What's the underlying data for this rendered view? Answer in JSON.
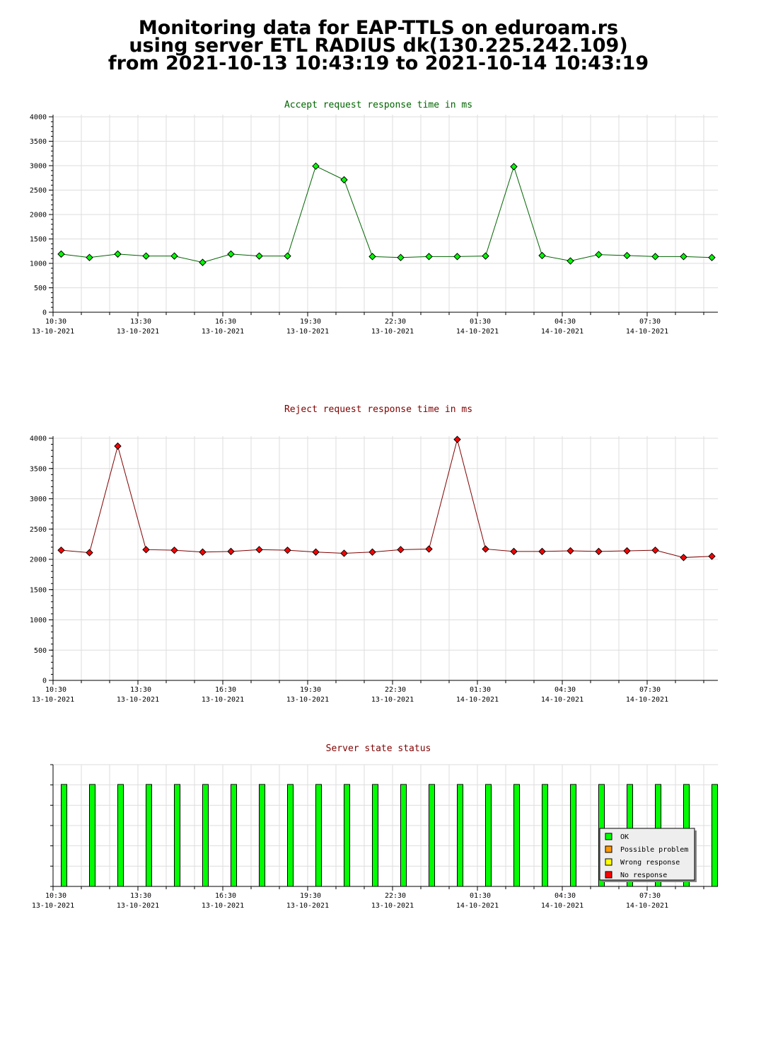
{
  "header": {
    "line1": "Monitoring data for EAP-TTLS on eduroam.rs",
    "line2": "using server ETL RADIUS dk(130.225.242.109)",
    "line3": "from 2021-10-13 10:43:19 to 2021-10-14 10:43:19"
  },
  "x_axis": {
    "ticks": [
      {
        "time": "10:30",
        "date": "13-10-2021"
      },
      {
        "time": "13:30",
        "date": "13-10-2021"
      },
      {
        "time": "16:30",
        "date": "13-10-2021"
      },
      {
        "time": "19:30",
        "date": "13-10-2021"
      },
      {
        "time": "22:30",
        "date": "13-10-2021"
      },
      {
        "time": "01:30",
        "date": "14-10-2021"
      },
      {
        "time": "04:30",
        "date": "14-10-2021"
      },
      {
        "time": "07:30",
        "date": "14-10-2021"
      }
    ]
  },
  "chart_data": [
    {
      "type": "line",
      "title": "Accept request response time in ms",
      "title_color": "#006400",
      "series_color": "#00ff00",
      "line_color": "#006400",
      "ylim": [
        0,
        4000
      ],
      "yticks": [
        0,
        500,
        1000,
        1500,
        2000,
        2500,
        3000,
        3500,
        4000
      ],
      "x": [
        "10:43",
        "11:43",
        "12:43",
        "13:43",
        "14:43",
        "15:43",
        "16:43",
        "17:43",
        "18:43",
        "19:43",
        "20:43",
        "21:43",
        "22:43",
        "23:43",
        "00:43",
        "01:43",
        "02:43",
        "03:43",
        "04:43",
        "05:43",
        "06:43",
        "07:43",
        "08:43",
        "09:43"
      ],
      "values": [
        1190,
        1120,
        1190,
        1150,
        1150,
        1020,
        1190,
        1150,
        1150,
        2990,
        2710,
        1140,
        1120,
        1140,
        1140,
        1150,
        2980,
        1160,
        1050,
        1180,
        1160,
        1140,
        1140,
        1120
      ],
      "grid": true
    },
    {
      "type": "line",
      "title": "Reject request response time in ms",
      "title_color": "#800000",
      "series_color": "#ff0000",
      "line_color": "#800000",
      "ylim": [
        0,
        4000
      ],
      "yticks": [
        0,
        500,
        1000,
        1500,
        2000,
        2500,
        3000,
        3500,
        4000
      ],
      "x": [
        "10:43",
        "11:43",
        "12:43",
        "13:43",
        "14:43",
        "15:43",
        "16:43",
        "17:43",
        "18:43",
        "19:43",
        "20:43",
        "21:43",
        "22:43",
        "23:43",
        "00:43",
        "01:43",
        "02:43",
        "03:43",
        "04:43",
        "05:43",
        "06:43",
        "07:43",
        "08:43",
        "09:43"
      ],
      "values": [
        2150,
        2110,
        3870,
        2160,
        2150,
        2120,
        2130,
        2160,
        2150,
        2120,
        2100,
        2120,
        2160,
        2170,
        3980,
        2170,
        2130,
        2130,
        2140,
        2130,
        2140,
        2150,
        2030,
        2050
      ],
      "grid": true
    },
    {
      "type": "bar",
      "title": "Server state status",
      "title_color": "#800000",
      "x": [
        "10:43",
        "11:43",
        "12:43",
        "13:43",
        "14:43",
        "15:43",
        "16:43",
        "17:43",
        "18:43",
        "19:43",
        "20:43",
        "21:43",
        "22:43",
        "23:43",
        "00:43",
        "01:43",
        "02:43",
        "03:43",
        "04:43",
        "05:43",
        "06:43",
        "07:43",
        "08:43",
        "09:43"
      ],
      "values": [
        "OK",
        "OK",
        "OK",
        "OK",
        "OK",
        "OK",
        "OK",
        "OK",
        "OK",
        "OK",
        "OK",
        "OK",
        "OK",
        "OK",
        "OK",
        "OK",
        "OK",
        "OK",
        "OK",
        "OK",
        "OK",
        "OK",
        "OK",
        "OK"
      ],
      "legend": [
        {
          "label": "OK",
          "color": "#00ff00"
        },
        {
          "label": "Possible problem",
          "color": "#ff9900"
        },
        {
          "label": "Wrong response",
          "color": "#ffff00"
        },
        {
          "label": "No response",
          "color": "#ff0000"
        }
      ],
      "legend_position": "bottom-right",
      "grid": true
    }
  ]
}
